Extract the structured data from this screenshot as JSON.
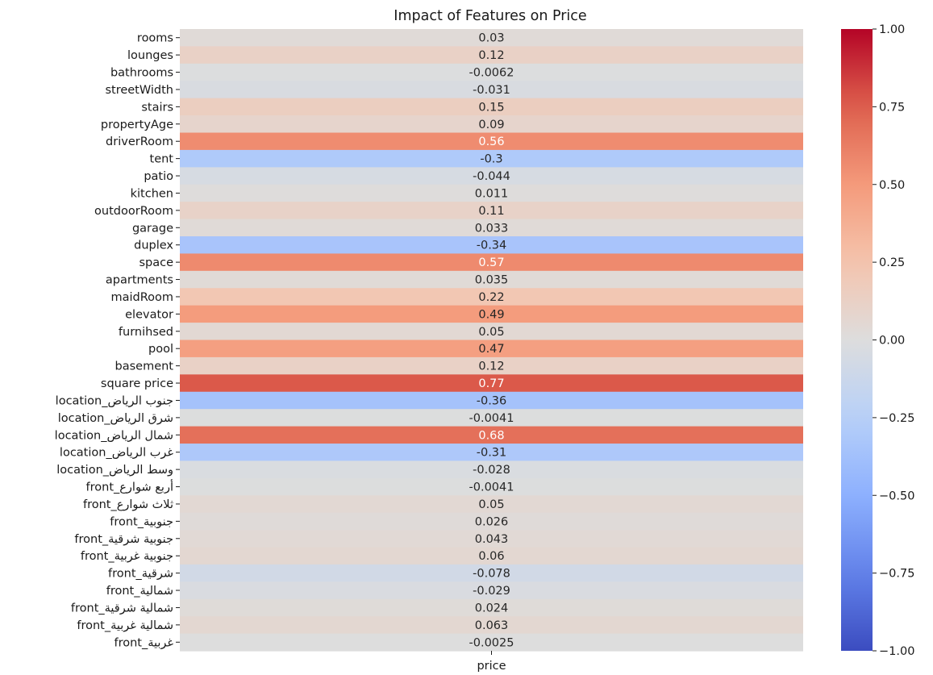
{
  "chart_data": {
    "type": "heatmap",
    "title": "Impact of Features on Price",
    "columns": [
      "price"
    ],
    "rows": [
      "rooms",
      "lounges",
      "bathrooms",
      "streetWidth",
      "stairs",
      "propertyAge",
      "driverRoom",
      "tent",
      "patio",
      "kitchen",
      "outdoorRoom",
      "garage",
      "duplex",
      "space",
      "apartments",
      "maidRoom",
      "elevator",
      "furnihsed",
      "pool",
      "basement",
      "square price",
      "location_جنوب الرياض",
      "location_شرق الرياض",
      "location_شمال الرياض",
      "location_غرب الرياض",
      "location_وسط الرياض",
      "front_أربع شوارع",
      "front_ثلاث شوارع",
      "front_جنوبية",
      "front_جنوبية شرقية",
      "front_جنوبية غربية",
      "front_شرقية",
      "front_شمالية",
      "front_شمالية شرقية",
      "front_شمالية غربية",
      "front_غربية"
    ],
    "values": [
      0.03,
      0.12,
      -0.0062,
      -0.031,
      0.15,
      0.09,
      0.56,
      -0.3,
      -0.044,
      0.011,
      0.11,
      0.033,
      -0.34,
      0.57,
      0.035,
      0.22,
      0.49,
      0.05,
      0.47,
      0.12,
      0.77,
      -0.36,
      -0.0041,
      0.68,
      -0.31,
      -0.028,
      -0.0041,
      0.05,
      0.026,
      0.043,
      0.06,
      -0.078,
      -0.029,
      0.024,
      0.063,
      -0.0025
    ],
    "value_labels": [
      "0.03",
      "0.12",
      "-0.0062",
      "-0.031",
      "0.15",
      "0.09",
      "0.56",
      "-0.3",
      "-0.044",
      "0.011",
      "0.11",
      "0.033",
      "-0.34",
      "0.57",
      "0.035",
      "0.22",
      "0.49",
      "0.05",
      "0.47",
      "0.12",
      "0.77",
      "-0.36",
      "-0.0041",
      "0.68",
      "-0.31",
      "-0.028",
      "-0.0041",
      "0.05",
      "0.026",
      "0.043",
      "0.06",
      "-0.078",
      "-0.029",
      "0.024",
      "0.063",
      "-0.0025"
    ],
    "colorbar": {
      "colormap": "coolwarm",
      "vmin": -1.0,
      "vmax": 1.0,
      "ticks": [
        1.0,
        0.75,
        0.5,
        0.25,
        0.0,
        -0.25,
        -0.5,
        -0.75,
        -1.0
      ],
      "tick_labels": [
        "1.00",
        "0.75",
        "0.50",
        "0.25",
        "0.00",
        "−0.25",
        "−0.50",
        "−0.75",
        "−1.00"
      ]
    }
  }
}
